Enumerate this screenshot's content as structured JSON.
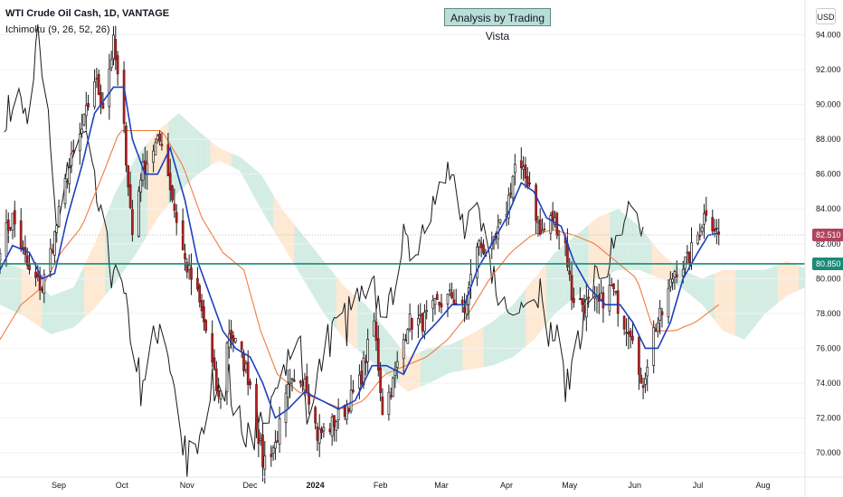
{
  "header": {
    "title": "WTI Crude Oil Cash, 1D, VANTAGE",
    "indicator": "Ichimoku (9, 26, 52, 26)",
    "watermark": "Analysis by Trading Vista",
    "currency": "USD"
  },
  "colors": {
    "bull": "#ffffff",
    "bear": "#b22222",
    "candle_outline": "#1a1a1a",
    "conversion_line": "#1d3fbf",
    "base_line": "#f07b3f",
    "lagging_span": "#1a1a1a",
    "cloud_bull": "#c8e8dc",
    "cloud_bear": "#fde3c8",
    "horizontal_line": "#1b8a77",
    "price_label_current": "#b2435e",
    "price_label_level": "#1b8a77"
  },
  "chart_data": {
    "type": "candlestick",
    "title": "WTI Crude Oil Cash, 1D, VANTAGE",
    "ylim": [
      68.6,
      96.0
    ],
    "y_ticks": [
      "70.000",
      "72.000",
      "74.000",
      "76.000",
      "78.000",
      "80.000",
      "82.000",
      "84.000",
      "86.000",
      "88.000",
      "90.000",
      "92.000",
      "94.000"
    ],
    "x_ticks": [
      {
        "label": "Sep",
        "date": "2023-09-01"
      },
      {
        "label": "Oct",
        "date": "2023-10-01"
      },
      {
        "label": "Nov",
        "date": "2023-11-01"
      },
      {
        "label": "Dec",
        "date": "2023-12-01"
      },
      {
        "label": "2024",
        "date": "2024-01-01"
      },
      {
        "label": "Feb",
        "date": "2024-02-01"
      },
      {
        "label": "Mar",
        "date": "2024-03-01"
      },
      {
        "label": "Apr",
        "date": "2024-04-01"
      },
      {
        "label": "May",
        "date": "2024-05-01"
      },
      {
        "label": "Jun",
        "date": "2024-06-01"
      },
      {
        "label": "Jul",
        "date": "2024-07-01"
      },
      {
        "label": "Aug",
        "date": "2024-08-01"
      }
    ],
    "x_range": [
      "2023-08-04",
      "2024-08-21"
    ],
    "close_waypoints": [
      [
        "2023-08-04",
        82.0
      ],
      [
        "2023-08-10",
        83.5
      ],
      [
        "2023-08-18",
        80.3
      ],
      [
        "2023-08-24",
        79.5
      ],
      [
        "2023-08-30",
        82.5
      ],
      [
        "2023-09-05",
        86.0
      ],
      [
        "2023-09-12",
        88.5
      ],
      [
        "2023-09-18",
        91.5
      ],
      [
        "2023-09-22",
        90.0
      ],
      [
        "2023-09-27",
        93.5
      ],
      [
        "2023-10-02",
        88.5
      ],
      [
        "2023-10-06",
        82.5
      ],
      [
        "2023-10-10",
        86.0
      ],
      [
        "2023-10-16",
        87.5
      ],
      [
        "2023-10-20",
        88.0
      ],
      [
        "2023-10-26",
        84.0
      ],
      [
        "2023-10-31",
        81.0
      ],
      [
        "2023-11-06",
        79.0
      ],
      [
        "2023-11-10",
        77.0
      ],
      [
        "2023-11-16",
        73.0
      ],
      [
        "2023-11-21",
        77.0
      ],
      [
        "2023-11-27",
        75.5
      ],
      [
        "2023-12-01",
        74.0
      ],
      [
        "2023-12-07",
        69.5
      ],
      [
        "2023-12-13",
        70.5
      ],
      [
        "2023-12-19",
        73.5
      ],
      [
        "2023-12-27",
        74.5
      ],
      [
        "2024-01-02",
        71.0
      ],
      [
        "2024-01-08",
        71.5
      ],
      [
        "2024-01-15",
        72.5
      ],
      [
        "2024-01-22",
        74.0
      ],
      [
        "2024-01-29",
        77.5
      ],
      [
        "2024-02-02",
        72.5
      ],
      [
        "2024-02-07",
        74.0
      ],
      [
        "2024-02-14",
        77.5
      ],
      [
        "2024-02-21",
        77.5
      ],
      [
        "2024-02-28",
        78.5
      ],
      [
        "2024-03-06",
        79.0
      ],
      [
        "2024-03-12",
        78.0
      ],
      [
        "2024-03-18",
        82.0
      ],
      [
        "2024-03-25",
        81.5
      ],
      [
        "2024-04-01",
        84.0
      ],
      [
        "2024-04-05",
        86.5
      ],
      [
        "2024-04-12",
        85.5
      ],
      [
        "2024-04-17",
        82.5
      ],
      [
        "2024-04-23",
        83.5
      ],
      [
        "2024-04-29",
        82.0
      ],
      [
        "2024-05-02",
        79.0
      ],
      [
        "2024-05-08",
        78.5
      ],
      [
        "2024-05-15",
        78.5
      ],
      [
        "2024-05-21",
        79.5
      ],
      [
        "2024-05-27",
        77.5
      ],
      [
        "2024-05-31",
        77.0
      ],
      [
        "2024-06-04",
        73.5
      ],
      [
        "2024-06-10",
        77.0
      ],
      [
        "2024-06-14",
        78.0
      ],
      [
        "2024-06-20",
        80.5
      ],
      [
        "2024-06-26",
        81.0
      ],
      [
        "2024-07-01",
        82.5
      ],
      [
        "2024-07-05",
        84.0
      ],
      [
        "2024-07-08",
        83.2
      ],
      [
        "2024-07-11",
        82.51
      ]
    ],
    "conversion_waypoints": [
      [
        "2023-08-04",
        80.5
      ],
      [
        "2023-08-10",
        81.9
      ],
      [
        "2023-08-18",
        81.5
      ],
      [
        "2023-08-24",
        80.0
      ],
      [
        "2023-08-30",
        80.3
      ],
      [
        "2023-09-05",
        83.5
      ],
      [
        "2023-09-12",
        86.5
      ],
      [
        "2023-09-18",
        89.5
      ],
      [
        "2023-09-27",
        91.0
      ],
      [
        "2023-10-02",
        91.0
      ],
      [
        "2023-10-06",
        88.0
      ],
      [
        "2023-10-12",
        86.0
      ],
      [
        "2023-10-18",
        86.0
      ],
      [
        "2023-10-24",
        87.5
      ],
      [
        "2023-10-31",
        84.5
      ],
      [
        "2023-11-06",
        81.0
      ],
      [
        "2023-11-12",
        79.0
      ],
      [
        "2023-11-18",
        77.0
      ],
      [
        "2023-11-24",
        76.0
      ],
      [
        "2023-12-01",
        75.5
      ],
      [
        "2023-12-07",
        74.0
      ],
      [
        "2023-12-13",
        72.0
      ],
      [
        "2023-12-19",
        72.5
      ],
      [
        "2023-12-27",
        73.5
      ],
      [
        "2024-01-04",
        73.0
      ],
      [
        "2024-01-12",
        72.5
      ],
      [
        "2024-01-20",
        73.0
      ],
      [
        "2024-01-28",
        75.0
      ],
      [
        "2024-02-04",
        75.0
      ],
      [
        "2024-02-12",
        74.5
      ],
      [
        "2024-02-20",
        76.5
      ],
      [
        "2024-02-28",
        77.5
      ],
      [
        "2024-03-06",
        78.5
      ],
      [
        "2024-03-12",
        78.5
      ],
      [
        "2024-03-18",
        80.5
      ],
      [
        "2024-03-25",
        82.0
      ],
      [
        "2024-04-01",
        83.5
      ],
      [
        "2024-04-08",
        85.5
      ],
      [
        "2024-04-14",
        85.0
      ],
      [
        "2024-04-20",
        83.5
      ],
      [
        "2024-04-27",
        83.0
      ],
      [
        "2024-05-03",
        81.0
      ],
      [
        "2024-05-10",
        79.5
      ],
      [
        "2024-05-18",
        78.5
      ],
      [
        "2024-05-25",
        78.5
      ],
      [
        "2024-05-31",
        77.5
      ],
      [
        "2024-06-06",
        76.0
      ],
      [
        "2024-06-12",
        76.0
      ],
      [
        "2024-06-18",
        77.5
      ],
      [
        "2024-06-24",
        80.0
      ],
      [
        "2024-07-01",
        81.5
      ],
      [
        "2024-07-06",
        82.5
      ],
      [
        "2024-07-11",
        82.6
      ]
    ],
    "base_waypoints": [
      [
        "2023-08-04",
        76.5
      ],
      [
        "2023-08-14",
        78.5
      ],
      [
        "2023-08-24",
        79.5
      ],
      [
        "2023-09-02",
        81.5
      ],
      [
        "2023-09-12",
        83.0
      ],
      [
        "2023-09-22",
        86.0
      ],
      [
        "2023-09-30",
        88.5
      ],
      [
        "2023-10-10",
        88.5
      ],
      [
        "2023-10-20",
        88.5
      ],
      [
        "2023-10-30",
        86.5
      ],
      [
        "2023-11-08",
        83.5
      ],
      [
        "2023-11-18",
        81.5
      ],
      [
        "2023-11-28",
        80.5
      ],
      [
        "2023-12-06",
        77.0
      ],
      [
        "2023-12-14",
        74.5
      ],
      [
        "2023-12-24",
        73.5
      ],
      [
        "2024-01-04",
        73.0
      ],
      [
        "2024-01-14",
        72.5
      ],
      [
        "2024-01-24",
        73.0
      ],
      [
        "2024-02-03",
        74.5
      ],
      [
        "2024-02-13",
        75.0
      ],
      [
        "2024-02-23",
        75.5
      ],
      [
        "2024-03-04",
        76.5
      ],
      [
        "2024-03-14",
        78.0
      ],
      [
        "2024-03-24",
        80.0
      ],
      [
        "2024-04-03",
        81.5
      ],
      [
        "2024-04-13",
        82.5
      ],
      [
        "2024-04-23",
        82.8
      ],
      [
        "2024-05-03",
        82.5
      ],
      [
        "2024-05-13",
        82.0
      ],
      [
        "2024-05-23",
        81.0
      ],
      [
        "2024-06-02",
        80.0
      ],
      [
        "2024-06-10",
        77.0
      ],
      [
        "2024-06-20",
        77.0
      ],
      [
        "2024-06-30",
        77.5
      ],
      [
        "2024-07-11",
        78.5
      ]
    ],
    "cloud_waypoints": [
      [
        "2023-08-04",
        81.0,
        78.5
      ],
      [
        "2023-08-16",
        80.5,
        77.8
      ],
      [
        "2023-08-28",
        79.0,
        76.8
      ],
      [
        "2023-09-08",
        79.5,
        77.2
      ],
      [
        "2023-09-18",
        82.0,
        78.3
      ],
      [
        "2023-09-28",
        85.0,
        79.8
      ],
      [
        "2023-10-08",
        87.0,
        81.5
      ],
      [
        "2023-10-18",
        88.5,
        83.5
      ],
      [
        "2023-10-28",
        89.5,
        85.0
      ],
      [
        "2023-11-06",
        88.5,
        86.0
      ],
      [
        "2023-11-16",
        87.5,
        86.8
      ],
      [
        "2023-11-26",
        87.0,
        86.2
      ],
      [
        "2023-12-06",
        86.0,
        84.0
      ],
      [
        "2023-12-16",
        84.0,
        82.0
      ],
      [
        "2023-12-26",
        82.5,
        80.0
      ],
      [
        "2024-01-05",
        81.0,
        78.0
      ],
      [
        "2024-01-15",
        79.5,
        76.5
      ],
      [
        "2024-01-25",
        78.5,
        75.5
      ],
      [
        "2024-02-04",
        77.0,
        74.5
      ],
      [
        "2024-02-14",
        75.5,
        73.5
      ],
      [
        "2024-02-24",
        76.0,
        74.0
      ],
      [
        "2024-03-05",
        76.2,
        74.6
      ],
      [
        "2024-03-15",
        76.8,
        74.8
      ],
      [
        "2024-03-25",
        77.5,
        75.0
      ],
      [
        "2024-04-04",
        78.5,
        75.5
      ],
      [
        "2024-04-14",
        80.0,
        76.5
      ],
      [
        "2024-04-24",
        81.5,
        78.0
      ],
      [
        "2024-05-04",
        82.5,
        79.0
      ],
      [
        "2024-05-14",
        83.5,
        80.0
      ],
      [
        "2024-05-24",
        84.0,
        80.5
      ],
      [
        "2024-06-03",
        83.0,
        80.5
      ],
      [
        "2024-06-13",
        81.5,
        80.0
      ],
      [
        "2024-06-23",
        80.5,
        79.5
      ],
      [
        "2024-07-03",
        80.0,
        78.5
      ],
      [
        "2024-07-13",
        80.5,
        77.0
      ],
      [
        "2024-07-23",
        80.5,
        76.5
      ],
      [
        "2024-08-02",
        80.5,
        78.0
      ],
      [
        "2024-08-12",
        81.0,
        79.0
      ],
      [
        "2024-08-21",
        80.6,
        79.5
      ]
    ],
    "horizontal_level": 80.85,
    "current_price": 82.51,
    "price_labels": [
      "82.510",
      "80.850"
    ]
  }
}
